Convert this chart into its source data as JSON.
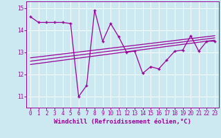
{
  "xlabel": "Windchill (Refroidissement éolien,°C)",
  "bg_color": "#cce8f0",
  "line_color": "#990099",
  "xlim": [
    -0.5,
    23.5
  ],
  "ylim": [
    10.5,
    15.3
  ],
  "yticks": [
    11,
    12,
    13,
    14,
    15
  ],
  "xticks": [
    0,
    1,
    2,
    3,
    4,
    5,
    6,
    7,
    8,
    9,
    10,
    11,
    12,
    13,
    14,
    15,
    16,
    17,
    18,
    19,
    20,
    21,
    22,
    23
  ],
  "main_x": [
    0,
    1,
    2,
    3,
    4,
    5,
    6,
    7,
    8,
    9,
    10,
    11,
    12,
    13,
    14,
    15,
    16,
    17,
    18,
    19,
    20,
    21,
    22,
    23
  ],
  "main_y": [
    14.6,
    14.35,
    14.35,
    14.35,
    14.35,
    14.3,
    11.0,
    11.5,
    14.9,
    13.5,
    14.3,
    13.7,
    13.0,
    13.05,
    12.05,
    12.35,
    12.25,
    12.65,
    13.05,
    13.1,
    13.75,
    13.05,
    13.5,
    13.5
  ],
  "line1_x": [
    0,
    23
  ],
  "line1_y": [
    12.45,
    13.55
  ],
  "line2_x": [
    0,
    23
  ],
  "line2_y": [
    12.6,
    13.65
  ],
  "line3_x": [
    0,
    23
  ],
  "line3_y": [
    12.75,
    13.75
  ],
  "grid_color": "#ffffff",
  "tick_fontsize": 5.5,
  "xlabel_fontsize": 6.5
}
